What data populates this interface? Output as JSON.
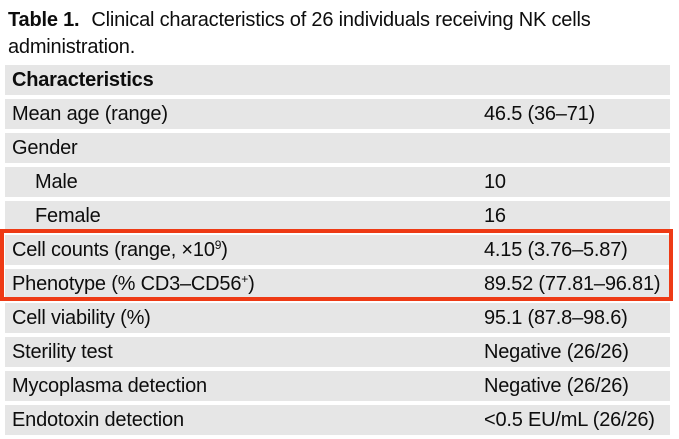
{
  "caption": {
    "label": "Table 1.",
    "text": "Clinical characteristics of 26 individuals receiving NK cells administration."
  },
  "table": {
    "header": "Characteristics",
    "rows": [
      {
        "name": "mean-age",
        "indent": false,
        "label": [
          {
            "t": "Mean age (range)"
          }
        ],
        "value": "46.5 (36–71)"
      },
      {
        "name": "gender",
        "indent": false,
        "label": [
          {
            "t": "Gender"
          }
        ],
        "value": ""
      },
      {
        "name": "male",
        "indent": true,
        "label": [
          {
            "t": "Male"
          }
        ],
        "value": "10"
      },
      {
        "name": "female",
        "indent": true,
        "label": [
          {
            "t": "Female"
          }
        ],
        "value": "16"
      },
      {
        "name": "cell-counts",
        "indent": false,
        "label": [
          {
            "t": "Cell counts (range, ×10"
          },
          {
            "t": "9",
            "sup": true
          },
          {
            "t": ")"
          }
        ],
        "value": "4.15 (3.76–5.87)"
      },
      {
        "name": "phenotype",
        "indent": false,
        "label": [
          {
            "t": "Phenotype (% CD3–CD56"
          },
          {
            "t": "+",
            "sup": true
          },
          {
            "t": ")"
          }
        ],
        "value": "89.52 (77.81–96.81)"
      },
      {
        "name": "cell-viability",
        "indent": false,
        "label": [
          {
            "t": "Cell viability (%)"
          }
        ],
        "value": "95.1 (87.8–98.6)"
      },
      {
        "name": "sterility-test",
        "indent": false,
        "label": [
          {
            "t": "Sterility test"
          }
        ],
        "value": "Negative (26/26)"
      },
      {
        "name": "mycoplasma-detection",
        "indent": false,
        "label": [
          {
            "t": "Mycoplasma detection"
          }
        ],
        "value": "Negative (26/26)"
      },
      {
        "name": "endotoxin-detection",
        "indent": false,
        "label": [
          {
            "t": "Endotoxin detection"
          }
        ],
        "value": "<0.5 EU/mL (26/26)"
      }
    ]
  },
  "highlight": {
    "row_names": [
      "cell-counts",
      "phenotype"
    ],
    "color": "#ee3a15"
  },
  "colors": {
    "row_bg": "#e6e6e6",
    "text": "#0d0d0d",
    "page_bg": "#ffffff"
  }
}
